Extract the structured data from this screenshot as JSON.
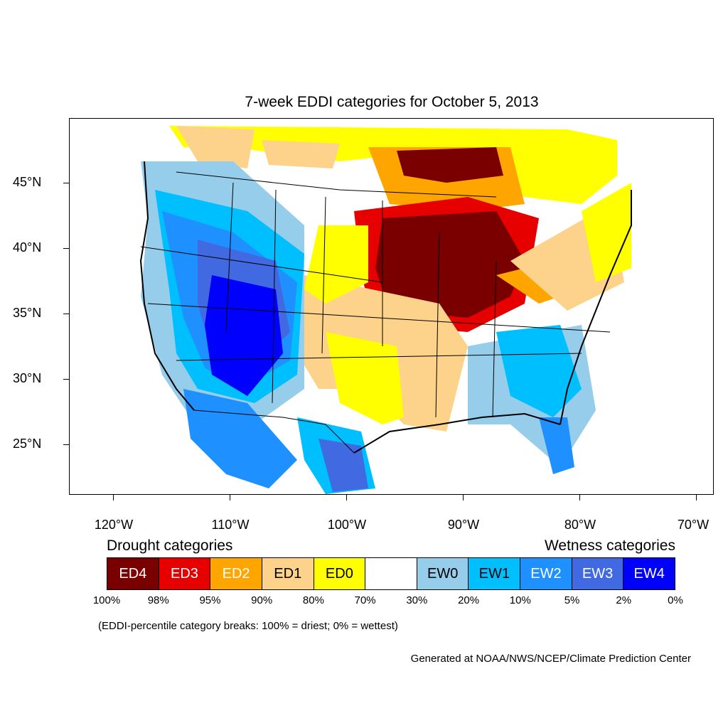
{
  "title": "7-week EDDI categories for October 5, 2013",
  "lat_labels": [
    "45°N",
    "40°N",
    "35°N",
    "30°N",
    "25°N"
  ],
  "lon_labels": [
    "120°W",
    "110°W",
    "100°W",
    "90°W",
    "80°W",
    "70°W"
  ],
  "legend": {
    "drought_heading": "Drought categories",
    "wetness_heading": "Wetness categories",
    "categories": [
      {
        "label": "ED4",
        "color": "#7a0000",
        "text_color": "#ffffff"
      },
      {
        "label": "ED3",
        "color": "#e60000",
        "text_color": "#ffffff"
      },
      {
        "label": "ED2",
        "color": "#ffa500",
        "text_color": "#ffffff"
      },
      {
        "label": "ED1",
        "color": "#fdd28a",
        "text_color": "#000000"
      },
      {
        "label": "ED0",
        "color": "#ffff00",
        "text_color": "#000000"
      },
      {
        "label": "",
        "color": "#ffffff",
        "text_color": "#000000"
      },
      {
        "label": "EW0",
        "color": "#96cdeb",
        "text_color": "#000000"
      },
      {
        "label": "EW1",
        "color": "#00bfff",
        "text_color": "#000000"
      },
      {
        "label": "EW2",
        "color": "#1e90ff",
        "text_color": "#ffffff"
      },
      {
        "label": "EW3",
        "color": "#4169e1",
        "text_color": "#ffffff"
      },
      {
        "label": "EW4",
        "color": "#0000ff",
        "text_color": "#ffffff"
      }
    ],
    "percentiles": [
      "100%",
      "98%",
      "95%",
      "90%",
      "80%",
      "70%",
      "30%",
      "20%",
      "10%",
      "5%",
      "2%",
      "0%"
    ]
  },
  "note": "(EDDI-percentile category breaks: 100% = driest; 0% = wettest)",
  "credit": "Generated at NOAA/NWS/NCEP/Climate Prediction Center"
}
